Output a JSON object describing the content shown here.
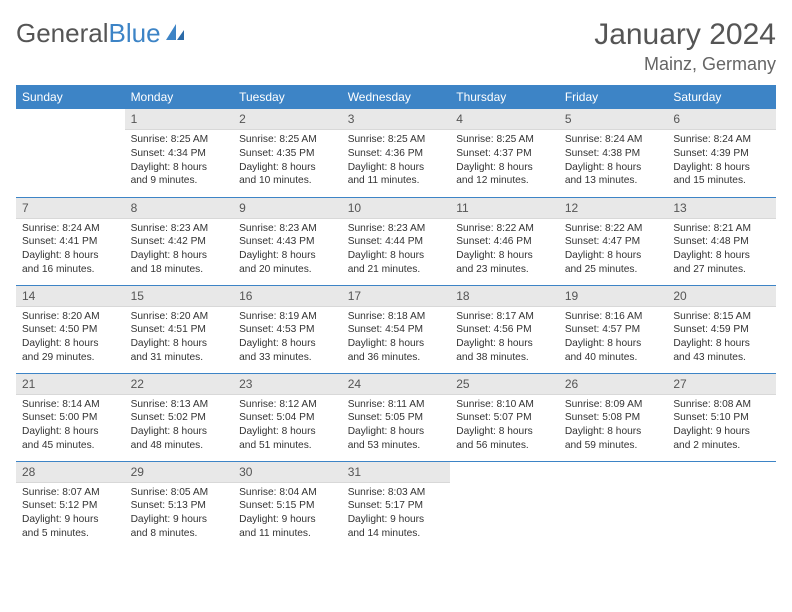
{
  "logo": {
    "text1": "General",
    "text2": "Blue"
  },
  "title": "January 2024",
  "location": "Mainz, Germany",
  "colors": {
    "header_bg": "#3d84c6",
    "header_text": "#ffffff",
    "daynum_bg": "#e8e8e8",
    "border": "#3d84c6",
    "text": "#333333",
    "title_color": "#555555"
  },
  "weekdays": [
    "Sunday",
    "Monday",
    "Tuesday",
    "Wednesday",
    "Thursday",
    "Friday",
    "Saturday"
  ],
  "weeks": [
    [
      {
        "n": "",
        "lines": [
          "",
          "",
          "",
          ""
        ]
      },
      {
        "n": "1",
        "lines": [
          "Sunrise: 8:25 AM",
          "Sunset: 4:34 PM",
          "Daylight: 8 hours",
          "and 9 minutes."
        ]
      },
      {
        "n": "2",
        "lines": [
          "Sunrise: 8:25 AM",
          "Sunset: 4:35 PM",
          "Daylight: 8 hours",
          "and 10 minutes."
        ]
      },
      {
        "n": "3",
        "lines": [
          "Sunrise: 8:25 AM",
          "Sunset: 4:36 PM",
          "Daylight: 8 hours",
          "and 11 minutes."
        ]
      },
      {
        "n": "4",
        "lines": [
          "Sunrise: 8:25 AM",
          "Sunset: 4:37 PM",
          "Daylight: 8 hours",
          "and 12 minutes."
        ]
      },
      {
        "n": "5",
        "lines": [
          "Sunrise: 8:24 AM",
          "Sunset: 4:38 PM",
          "Daylight: 8 hours",
          "and 13 minutes."
        ]
      },
      {
        "n": "6",
        "lines": [
          "Sunrise: 8:24 AM",
          "Sunset: 4:39 PM",
          "Daylight: 8 hours",
          "and 15 minutes."
        ]
      }
    ],
    [
      {
        "n": "7",
        "lines": [
          "Sunrise: 8:24 AM",
          "Sunset: 4:41 PM",
          "Daylight: 8 hours",
          "and 16 minutes."
        ]
      },
      {
        "n": "8",
        "lines": [
          "Sunrise: 8:23 AM",
          "Sunset: 4:42 PM",
          "Daylight: 8 hours",
          "and 18 minutes."
        ]
      },
      {
        "n": "9",
        "lines": [
          "Sunrise: 8:23 AM",
          "Sunset: 4:43 PM",
          "Daylight: 8 hours",
          "and 20 minutes."
        ]
      },
      {
        "n": "10",
        "lines": [
          "Sunrise: 8:23 AM",
          "Sunset: 4:44 PM",
          "Daylight: 8 hours",
          "and 21 minutes."
        ]
      },
      {
        "n": "11",
        "lines": [
          "Sunrise: 8:22 AM",
          "Sunset: 4:46 PM",
          "Daylight: 8 hours",
          "and 23 minutes."
        ]
      },
      {
        "n": "12",
        "lines": [
          "Sunrise: 8:22 AM",
          "Sunset: 4:47 PM",
          "Daylight: 8 hours",
          "and 25 minutes."
        ]
      },
      {
        "n": "13",
        "lines": [
          "Sunrise: 8:21 AM",
          "Sunset: 4:48 PM",
          "Daylight: 8 hours",
          "and 27 minutes."
        ]
      }
    ],
    [
      {
        "n": "14",
        "lines": [
          "Sunrise: 8:20 AM",
          "Sunset: 4:50 PM",
          "Daylight: 8 hours",
          "and 29 minutes."
        ]
      },
      {
        "n": "15",
        "lines": [
          "Sunrise: 8:20 AM",
          "Sunset: 4:51 PM",
          "Daylight: 8 hours",
          "and 31 minutes."
        ]
      },
      {
        "n": "16",
        "lines": [
          "Sunrise: 8:19 AM",
          "Sunset: 4:53 PM",
          "Daylight: 8 hours",
          "and 33 minutes."
        ]
      },
      {
        "n": "17",
        "lines": [
          "Sunrise: 8:18 AM",
          "Sunset: 4:54 PM",
          "Daylight: 8 hours",
          "and 36 minutes."
        ]
      },
      {
        "n": "18",
        "lines": [
          "Sunrise: 8:17 AM",
          "Sunset: 4:56 PM",
          "Daylight: 8 hours",
          "and 38 minutes."
        ]
      },
      {
        "n": "19",
        "lines": [
          "Sunrise: 8:16 AM",
          "Sunset: 4:57 PM",
          "Daylight: 8 hours",
          "and 40 minutes."
        ]
      },
      {
        "n": "20",
        "lines": [
          "Sunrise: 8:15 AM",
          "Sunset: 4:59 PM",
          "Daylight: 8 hours",
          "and 43 minutes."
        ]
      }
    ],
    [
      {
        "n": "21",
        "lines": [
          "Sunrise: 8:14 AM",
          "Sunset: 5:00 PM",
          "Daylight: 8 hours",
          "and 45 minutes."
        ]
      },
      {
        "n": "22",
        "lines": [
          "Sunrise: 8:13 AM",
          "Sunset: 5:02 PM",
          "Daylight: 8 hours",
          "and 48 minutes."
        ]
      },
      {
        "n": "23",
        "lines": [
          "Sunrise: 8:12 AM",
          "Sunset: 5:04 PM",
          "Daylight: 8 hours",
          "and 51 minutes."
        ]
      },
      {
        "n": "24",
        "lines": [
          "Sunrise: 8:11 AM",
          "Sunset: 5:05 PM",
          "Daylight: 8 hours",
          "and 53 minutes."
        ]
      },
      {
        "n": "25",
        "lines": [
          "Sunrise: 8:10 AM",
          "Sunset: 5:07 PM",
          "Daylight: 8 hours",
          "and 56 minutes."
        ]
      },
      {
        "n": "26",
        "lines": [
          "Sunrise: 8:09 AM",
          "Sunset: 5:08 PM",
          "Daylight: 8 hours",
          "and 59 minutes."
        ]
      },
      {
        "n": "27",
        "lines": [
          "Sunrise: 8:08 AM",
          "Sunset: 5:10 PM",
          "Daylight: 9 hours",
          "and 2 minutes."
        ]
      }
    ],
    [
      {
        "n": "28",
        "lines": [
          "Sunrise: 8:07 AM",
          "Sunset: 5:12 PM",
          "Daylight: 9 hours",
          "and 5 minutes."
        ]
      },
      {
        "n": "29",
        "lines": [
          "Sunrise: 8:05 AM",
          "Sunset: 5:13 PM",
          "Daylight: 9 hours",
          "and 8 minutes."
        ]
      },
      {
        "n": "30",
        "lines": [
          "Sunrise: 8:04 AM",
          "Sunset: 5:15 PM",
          "Daylight: 9 hours",
          "and 11 minutes."
        ]
      },
      {
        "n": "31",
        "lines": [
          "Sunrise: 8:03 AM",
          "Sunset: 5:17 PM",
          "Daylight: 9 hours",
          "and 14 minutes."
        ]
      },
      {
        "n": "",
        "lines": [
          "",
          "",
          "",
          ""
        ]
      },
      {
        "n": "",
        "lines": [
          "",
          "",
          "",
          ""
        ]
      },
      {
        "n": "",
        "lines": [
          "",
          "",
          "",
          ""
        ]
      }
    ]
  ]
}
